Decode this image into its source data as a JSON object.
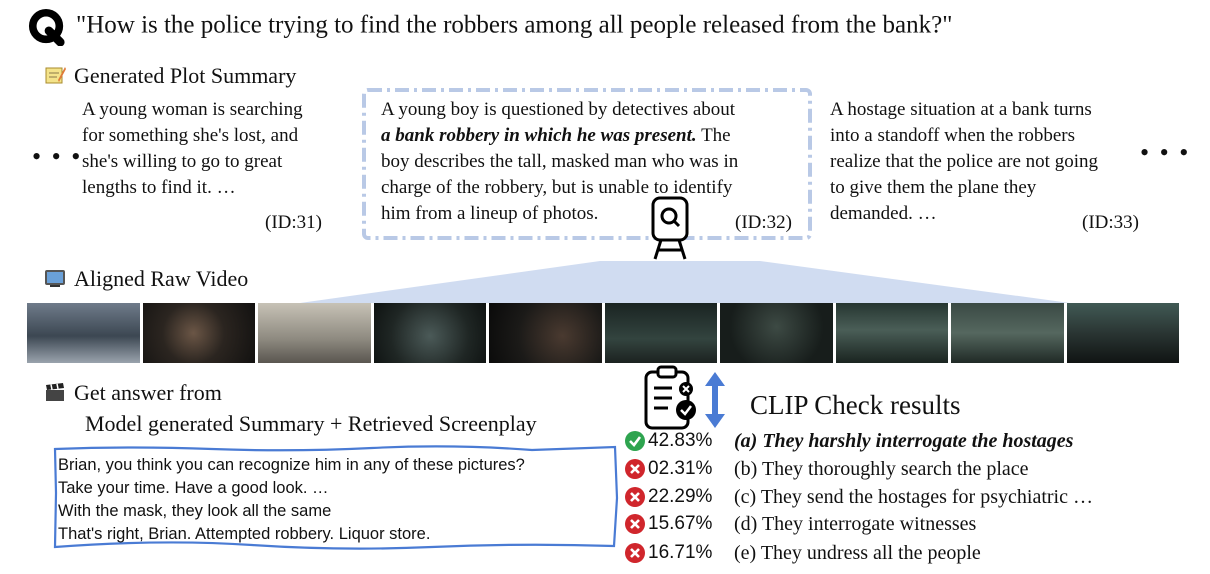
{
  "question": "\"How is the police trying to find the robbers among all people released from the bank?\"",
  "sections": {
    "plot_summary": "Generated Plot Summary",
    "raw_video": "Aligned Raw Video",
    "get_answer": "Get answer from",
    "answer_source": "Model generated Summary + Retrieved Screenplay",
    "clip_check": "CLIP Check results"
  },
  "ellipsis": "• • •",
  "summaries": [
    {
      "lines": [
        "A young woman is searching",
        "for something she's lost, and",
        "she's willing to go to great",
        "lengths to find it. …"
      ],
      "id": "(ID:31)"
    },
    {
      "line1": "A young boy is questioned by detectives about",
      "line2_bold": "a bank robbery in which he was present.",
      "line2_rest": " The",
      "line3": "boy describes the tall, masked man who was in",
      "line4": "charge of the robbery, but is unable to identify",
      "line5": "him from a lineup of photos.",
      "id": "(ID:32)"
    },
    {
      "lines": [
        "A hostage situation at a bank turns",
        "into a standoff when the robbers",
        "realize that the police are not going",
        "to give them the plane they",
        "demanded. …"
      ],
      "id": "(ID:33)"
    }
  ],
  "screenplay": [
    "Brian, you think you can recognize him in any of these pictures?",
    "Take your time. Have a good look. …",
    "With the mask, they look all the same",
    "That's right, Brian. Attempted robbery. Liquor store."
  ],
  "results": [
    {
      "pct": "42.83%",
      "answer": "(a) They harshly interrogate the hostages",
      "status": "check",
      "correct": true
    },
    {
      "pct": "02.31%",
      "answer": "(b) They thoroughly search the place",
      "status": "cross",
      "correct": false
    },
    {
      "pct": "22.29%",
      "answer": "(c) They send the hostages for psychiatric …",
      "status": "cross",
      "correct": false
    },
    {
      "pct": "15.67%",
      "answer": "(d) They interrogate witnesses",
      "status": "cross",
      "correct": false
    },
    {
      "pct": "16.71%",
      "answer": "(e) They undress all the people",
      "status": "cross",
      "correct": false
    }
  ],
  "colors": {
    "check": "#2ea44f",
    "cross": "#d0262c",
    "accent_blue": "#4a7bd4",
    "fan": "#c8d6ee",
    "dashed": "#b9c9e6"
  },
  "icons": [
    "question-logo-icon",
    "notepad-icon",
    "tv-icon",
    "clapperboard-icon",
    "search-tower-icon",
    "clipboard-check-icon",
    "up-down-arrow-icon",
    "check-icon",
    "cross-icon"
  ]
}
